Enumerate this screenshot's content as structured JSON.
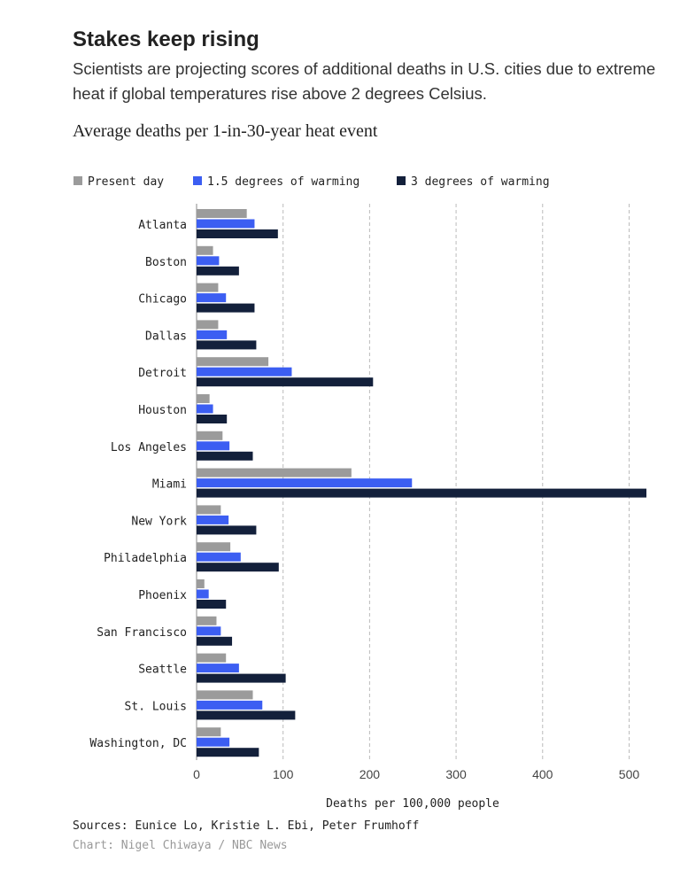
{
  "chart_data": {
    "type": "grouped-horizontal-bar",
    "title": "Stakes keep rising",
    "subtitle": "Scientists are projecting scores of additional deaths in U.S. cities due to extreme heat if global temperatures rise above 2 degrees Celsius.",
    "chart_title": "Average deaths per 1-in-30-year heat event",
    "x_label": "Deaths per 100,000 people",
    "source": "Sources: Eunice Lo, Kristie L. Ebi, Peter Frumhoff",
    "credit": "Chart: Nigel Chiwaya / NBC News",
    "categories": [
      "Atlanta",
      "Boston",
      "Chicago",
      "Dallas",
      "Detroit",
      "Houston",
      "Los Angeles",
      "Miami",
      "New York",
      "Philadelphia",
      "Phoenix",
      "San Francisco",
      "Seattle",
      "St. Louis",
      "Washington, DC"
    ],
    "series": [
      {
        "name": "Present day",
        "color": "#9b9b9b",
        "values": [
          58,
          19,
          25,
          25,
          83,
          15,
          30,
          179,
          28,
          39,
          9,
          23,
          34,
          65,
          28
        ]
      },
      {
        "name": "1.5 degrees of warming",
        "color": "#3c5ef2",
        "values": [
          67,
          26,
          34,
          35,
          110,
          19,
          38,
          249,
          37,
          51,
          14,
          28,
          49,
          76,
          38
        ]
      },
      {
        "name": "3 degrees of warming",
        "color": "#13203b",
        "values": [
          94,
          49,
          67,
          69,
          204,
          35,
          65,
          520,
          69,
          95,
          34,
          41,
          103,
          114,
          72
        ]
      }
    ],
    "xlim": [
      0,
      520
    ],
    "xticks": [
      0,
      100,
      200,
      300,
      400,
      500
    ],
    "grid": true,
    "legend": "top-left"
  }
}
